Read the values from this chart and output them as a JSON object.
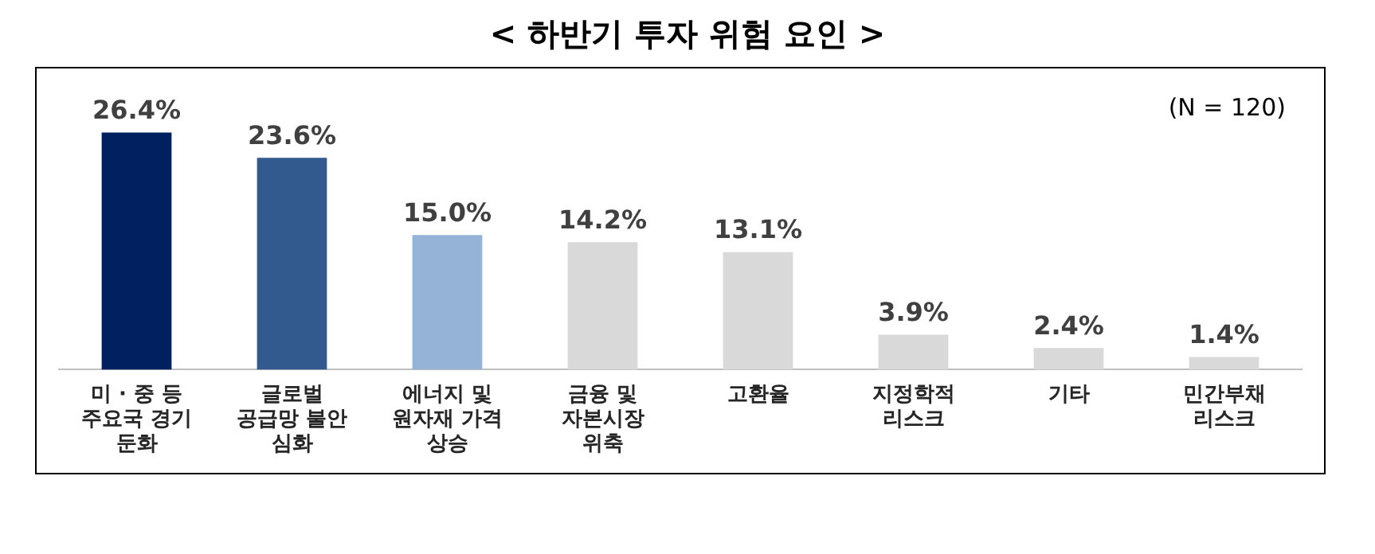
{
  "chart_data": {
    "type": "bar",
    "title": "< 하반기 투자 위험 요인 >",
    "categories": [
      "미 · 중 등\n주요국 경기\n둔화",
      "글로벌\n공급망 불안\n심화",
      "에너지 및\n원자재 가격\n상승",
      "금융 및\n자본시장\n위축",
      "고환율",
      "지정학적\n리스크",
      "기타",
      "민간부채\n리스크"
    ],
    "values": [
      26.4,
      23.6,
      15.0,
      14.2,
      13.1,
      3.9,
      2.4,
      1.4
    ],
    "value_labels": [
      "26.4%",
      "23.6%",
      "15.0%",
      "14.2%",
      "13.1%",
      "3.9%",
      "2.4%",
      "1.4%"
    ],
    "colors": [
      "#002060",
      "#335a8e",
      "#95b3d7",
      "#d9d9d9",
      "#d9d9d9",
      "#d9d9d9",
      "#d9d9d9",
      "#d9d9d9"
    ],
    "annotations": [
      "(N = 120)"
    ],
    "grid": false,
    "legend": false
  }
}
